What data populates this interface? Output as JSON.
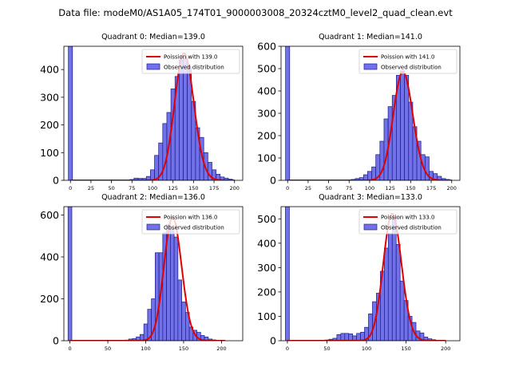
{
  "suptitle": "Data file: modeM0/AS1A05_174T01_9000003008_20324cztM0_level2_quad_clean.evt",
  "colors": {
    "bar_fill": "#7272e8",
    "bar_edge": "#1a1a8c",
    "fit_line": "#e00000"
  },
  "chart_data": [
    {
      "type": "bar",
      "title": "Quadrant 0: Median=139.0",
      "xlim": [
        -8,
        210
      ],
      "ylim": [
        0,
        484
      ],
      "xticks": [
        0,
        25,
        50,
        75,
        100,
        125,
        150,
        175,
        200
      ],
      "yticks": [
        0,
        100,
        200,
        300,
        400
      ],
      "bin_width": 5,
      "bins": [
        {
          "x": 0,
          "y": 484
        },
        {
          "x": 75,
          "y": 3
        },
        {
          "x": 80,
          "y": 8
        },
        {
          "x": 85,
          "y": 7
        },
        {
          "x": 90,
          "y": 7
        },
        {
          "x": 95,
          "y": 14
        },
        {
          "x": 100,
          "y": 38
        },
        {
          "x": 105,
          "y": 90
        },
        {
          "x": 110,
          "y": 135
        },
        {
          "x": 115,
          "y": 205
        },
        {
          "x": 120,
          "y": 245
        },
        {
          "x": 125,
          "y": 330
        },
        {
          "x": 130,
          "y": 375
        },
        {
          "x": 135,
          "y": 435
        },
        {
          "x": 140,
          "y": 440
        },
        {
          "x": 145,
          "y": 410
        },
        {
          "x": 150,
          "y": 285
        },
        {
          "x": 155,
          "y": 190
        },
        {
          "x": 160,
          "y": 155
        },
        {
          "x": 165,
          "y": 100
        },
        {
          "x": 170,
          "y": 65
        },
        {
          "x": 175,
          "y": 38
        },
        {
          "x": 180,
          "y": 22
        },
        {
          "x": 185,
          "y": 12
        },
        {
          "x": 190,
          "y": 8
        },
        {
          "x": 195,
          "y": 4
        }
      ],
      "fit": {
        "label": "Poission with 139.0",
        "lambda": 139.0,
        "amplitude": 459,
        "x_range": [
          0,
          200
        ]
      },
      "legend": {
        "fit": "Poission with 139.0",
        "observed": "Observed distribution",
        "loc": "upper right"
      }
    },
    {
      "type": "bar",
      "title": "Quadrant 1: Median=141.0",
      "xlim": [
        -8,
        210
      ],
      "ylim": [
        0,
        600
      ],
      "xticks": [
        0,
        25,
        50,
        75,
        100,
        125,
        150,
        175,
        200
      ],
      "yticks": [
        0,
        100,
        200,
        300,
        400,
        500,
        600
      ],
      "bin_width": 5,
      "bins": [
        {
          "x": 0,
          "y": 600
        },
        {
          "x": 80,
          "y": 4
        },
        {
          "x": 85,
          "y": 8
        },
        {
          "x": 90,
          "y": 12
        },
        {
          "x": 95,
          "y": 25
        },
        {
          "x": 100,
          "y": 40
        },
        {
          "x": 105,
          "y": 60
        },
        {
          "x": 110,
          "y": 115
        },
        {
          "x": 115,
          "y": 175
        },
        {
          "x": 120,
          "y": 275
        },
        {
          "x": 125,
          "y": 330
        },
        {
          "x": 130,
          "y": 380
        },
        {
          "x": 135,
          "y": 470
        },
        {
          "x": 140,
          "y": 490
        },
        {
          "x": 145,
          "y": 470
        },
        {
          "x": 150,
          "y": 350
        },
        {
          "x": 155,
          "y": 240
        },
        {
          "x": 160,
          "y": 175
        },
        {
          "x": 165,
          "y": 115
        },
        {
          "x": 170,
          "y": 105
        },
        {
          "x": 175,
          "y": 40
        },
        {
          "x": 180,
          "y": 30
        },
        {
          "x": 185,
          "y": 18
        },
        {
          "x": 190,
          "y": 8
        },
        {
          "x": 195,
          "y": 4
        }
      ],
      "fit": {
        "label": "Poission with 141.0",
        "lambda": 141.0,
        "amplitude": 486,
        "x_range": [
          0,
          200
        ]
      },
      "legend": {
        "fit": "Poission with 141.0",
        "observed": "Observed distribution",
        "loc": "upper right"
      }
    },
    {
      "type": "bar",
      "title": "Quadrant 2: Median=136.0",
      "xlim": [
        -8,
        228
      ],
      "ylim": [
        0,
        640
      ],
      "xticks": [
        0,
        50,
        100,
        150,
        200
      ],
      "yticks": [
        0,
        200,
        400,
        600
      ],
      "bin_width": 5,
      "bins": [
        {
          "x": 0,
          "y": 640
        },
        {
          "x": 70,
          "y": 2
        },
        {
          "x": 75,
          "y": 3
        },
        {
          "x": 80,
          "y": 8
        },
        {
          "x": 85,
          "y": 10
        },
        {
          "x": 90,
          "y": 18
        },
        {
          "x": 95,
          "y": 30
        },
        {
          "x": 100,
          "y": 80
        },
        {
          "x": 105,
          "y": 150
        },
        {
          "x": 110,
          "y": 200
        },
        {
          "x": 115,
          "y": 420
        },
        {
          "x": 120,
          "y": 420
        },
        {
          "x": 125,
          "y": 515
        },
        {
          "x": 130,
          "y": 555
        },
        {
          "x": 135,
          "y": 535
        },
        {
          "x": 140,
          "y": 495
        },
        {
          "x": 145,
          "y": 290
        },
        {
          "x": 150,
          "y": 185
        },
        {
          "x": 155,
          "y": 135
        },
        {
          "x": 160,
          "y": 65
        },
        {
          "x": 165,
          "y": 50
        },
        {
          "x": 170,
          "y": 40
        },
        {
          "x": 175,
          "y": 25
        },
        {
          "x": 180,
          "y": 18
        },
        {
          "x": 185,
          "y": 8
        },
        {
          "x": 190,
          "y": 4
        }
      ],
      "fit": {
        "label": "Poission with 136.0",
        "lambda": 136.0,
        "amplitude": 588,
        "x_range": [
          0,
          205
        ]
      },
      "legend": {
        "fit": "Poission with 136.0",
        "observed": "Observed distribution",
        "loc": "upper right"
      }
    },
    {
      "type": "bar",
      "title": "Quadrant 3: Median=133.0",
      "xlim": [
        -8,
        218
      ],
      "ylim": [
        0,
        550
      ],
      "xticks": [
        0,
        50,
        100,
        150,
        200
      ],
      "yticks": [
        0,
        100,
        200,
        300,
        400,
        500
      ],
      "bin_width": 5,
      "bins": [
        {
          "x": 0,
          "y": 550
        },
        {
          "x": 50,
          "y": 3
        },
        {
          "x": 55,
          "y": 6
        },
        {
          "x": 60,
          "y": 10
        },
        {
          "x": 65,
          "y": 25
        },
        {
          "x": 70,
          "y": 30
        },
        {
          "x": 75,
          "y": 30
        },
        {
          "x": 80,
          "y": 28
        },
        {
          "x": 85,
          "y": 20
        },
        {
          "x": 90,
          "y": 30
        },
        {
          "x": 95,
          "y": 35
        },
        {
          "x": 100,
          "y": 55
        },
        {
          "x": 105,
          "y": 110
        },
        {
          "x": 110,
          "y": 160
        },
        {
          "x": 115,
          "y": 195
        },
        {
          "x": 120,
          "y": 285
        },
        {
          "x": 125,
          "y": 380
        },
        {
          "x": 130,
          "y": 440
        },
        {
          "x": 135,
          "y": 510
        },
        {
          "x": 140,
          "y": 395
        },
        {
          "x": 145,
          "y": 245
        },
        {
          "x": 150,
          "y": 165
        },
        {
          "x": 155,
          "y": 100
        },
        {
          "x": 160,
          "y": 75
        },
        {
          "x": 165,
          "y": 40
        },
        {
          "x": 170,
          "y": 32
        },
        {
          "x": 175,
          "y": 15
        },
        {
          "x": 180,
          "y": 8
        },
        {
          "x": 185,
          "y": 4
        }
      ],
      "fit": {
        "label": "Poission with 133.0",
        "lambda": 133.0,
        "amplitude": 521,
        "x_range": [
          0,
          200
        ]
      },
      "legend": {
        "fit": "Poission with 133.0",
        "observed": "Observed distribution",
        "loc": "upper right"
      }
    }
  ]
}
